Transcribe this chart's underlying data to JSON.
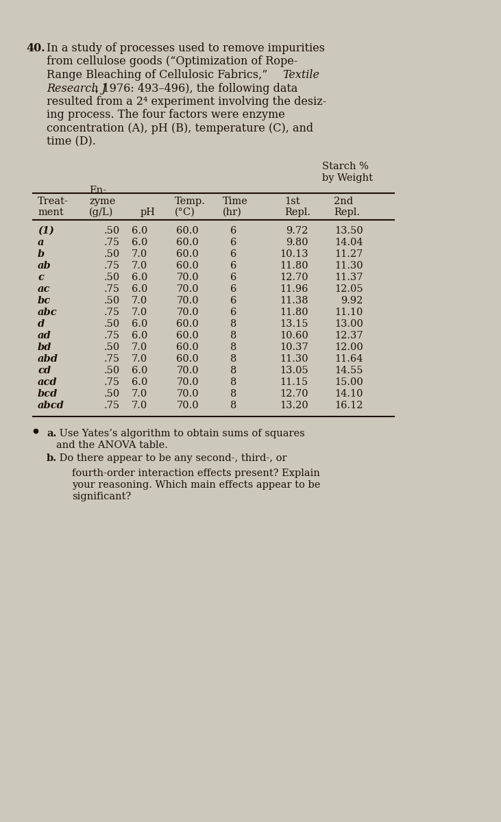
{
  "bg_color": "#cdc8bc",
  "text_color": "#1a1008",
  "table_rows": [
    [
      "(1)",
      ".50",
      "6.0",
      "60.0",
      "6",
      "9.72",
      "13.50"
    ],
    [
      "a",
      ".75",
      "6.0",
      "60.0",
      "6",
      "9.80",
      "14.04"
    ],
    [
      "b",
      ".50",
      "7.0",
      "60.0",
      "6",
      "10.13",
      "11.27"
    ],
    [
      "ab",
      ".75",
      "7.0",
      "60.0",
      "6",
      "11.80",
      "11.30"
    ],
    [
      "c",
      ".50",
      "6.0",
      "70.0",
      "6",
      "12.70",
      "11.37"
    ],
    [
      "ac",
      ".75",
      "6.0",
      "70.0",
      "6",
      "11.96",
      "12.05"
    ],
    [
      "bc",
      ".50",
      "7.0",
      "70.0",
      "6",
      "11.38",
      "9.92"
    ],
    [
      "abc",
      ".75",
      "7.0",
      "70.0",
      "6",
      "11.80",
      "11.10"
    ],
    [
      "d",
      ".50",
      "6.0",
      "60.0",
      "8",
      "13.15",
      "13.00"
    ],
    [
      "ad",
      ".75",
      "6.0",
      "60.0",
      "8",
      "10.60",
      "12.37"
    ],
    [
      "bd",
      ".50",
      "7.0",
      "60.0",
      "8",
      "10.37",
      "12.00"
    ],
    [
      "abd",
      ".75",
      "7.0",
      "60.0",
      "8",
      "11.30",
      "11.64"
    ],
    [
      "cd",
      ".50",
      "6.0",
      "70.0",
      "8",
      "13.05",
      "14.55"
    ],
    [
      "acd",
      ".75",
      "6.0",
      "70.0",
      "8",
      "11.15",
      "15.00"
    ],
    [
      "bcd",
      ".50",
      "7.0",
      "70.0",
      "8",
      "12.70",
      "14.10"
    ],
    [
      "abcd",
      ".75",
      "7.0",
      "70.0",
      "8",
      "13.20",
      "16.12"
    ]
  ]
}
